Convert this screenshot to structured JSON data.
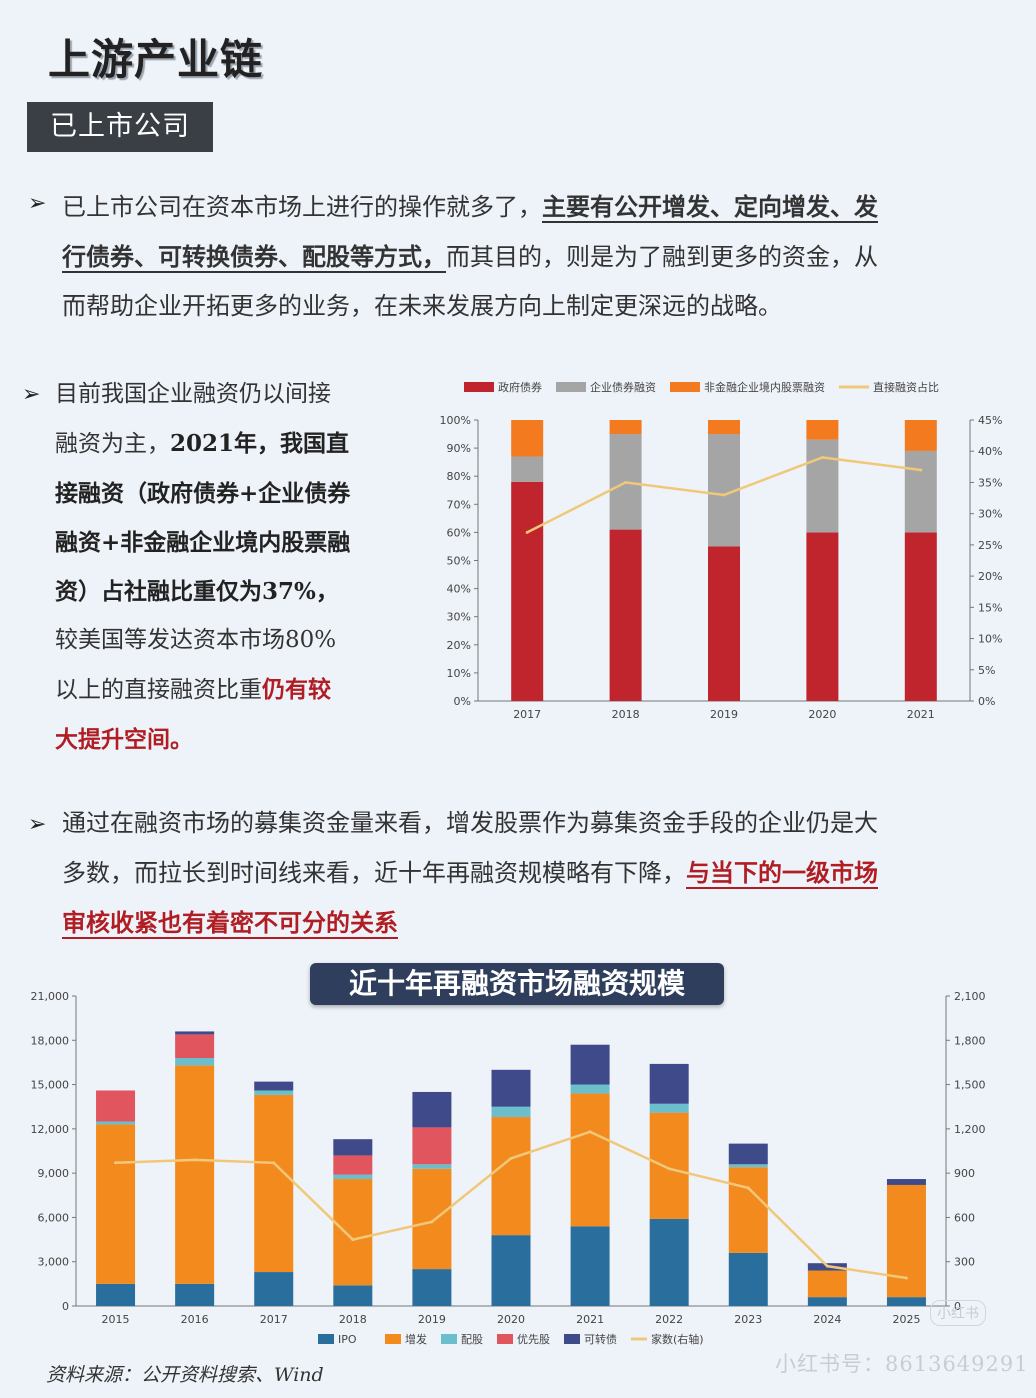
{
  "header": {
    "title": "上游产业链",
    "badge": "已上市公司"
  },
  "section1": {
    "bullet": "➢",
    "text_pre": "已上市公司在资本市场上进行的操作就多了，",
    "text_ul_1": "主要有公开增发、定向增发、发",
    "text_ul_2": "行债券、可转换债券、配股等方式，",
    "text_post_1": "而其目的，则是为了融到更多的资金，从",
    "text_post_2": "而帮助企业开拓更多的业务，在未来发展方向上制定更深远的战略。"
  },
  "section2": {
    "bullet": "➢",
    "lines": [
      "目前我国企业融资仍以间接",
      "融资为主，",
      "2021年，我国直",
      "接融资（政府债券+企业债券",
      "融资+非金融企业境内股票融",
      "资）占社融比重仅为37%，",
      "较美国等发达资本市场80%",
      "以上的直接融资比重",
      "仍有较",
      "大提升空间。"
    ]
  },
  "section3": {
    "bullet": "➢",
    "line1": "通过在融资市场的募集资金量来看，增发股票作为募集资金手段的企业仍是大",
    "line2_pre": "多数，而拉长到时间线来看，近十年再融资规模略有下降，",
    "line2_red": "与当下的一级市场",
    "line3_red": "审核收紧也有着密不可分的关系"
  },
  "chart_data": [
    {
      "type": "bar",
      "stacked": true,
      "categories": [
        "2017",
        "2018",
        "2019",
        "2020",
        "2021"
      ],
      "series": [
        {
          "name": "政府债券",
          "values": [
            78,
            61,
            55,
            60,
            60
          ],
          "color": "#c0242d"
        },
        {
          "name": "企业债券融资",
          "values": [
            9,
            34,
            40,
            33,
            29
          ],
          "color": "#a5a5a5"
        },
        {
          "name": "非金融企业境内股票融资",
          "values": [
            13,
            5,
            5,
            7,
            11
          ],
          "color": "#f47a1f"
        }
      ],
      "line": {
        "name": "直接融资占比",
        "values": [
          27,
          35,
          33,
          39,
          37
        ],
        "color": "#f0c87a",
        "axis": "right"
      },
      "ylim": [
        0,
        100
      ],
      "y_ticks": [
        "0%",
        "10%",
        "20%",
        "30%",
        "40%",
        "50%",
        "60%",
        "70%",
        "80%",
        "90%",
        "100%"
      ],
      "y2lim": [
        0,
        45
      ],
      "y2_ticks": [
        "0%",
        "5%",
        "10%",
        "15%",
        "20%",
        "25%",
        "30%",
        "35%",
        "40%",
        "45%"
      ],
      "legend_position": "top"
    },
    {
      "type": "bar",
      "stacked": true,
      "title": "近十年再融资市场融资规模",
      "categories": [
        "2015",
        "2016",
        "2017",
        "2018",
        "2019",
        "2020",
        "2021",
        "2022",
        "2023",
        "2024",
        "2025"
      ],
      "series": [
        {
          "name": "IPO",
          "values": [
            1500,
            1500,
            2300,
            1400,
            2500,
            4800,
            5400,
            5900,
            3600,
            600,
            600
          ],
          "color": "#2a6e9e"
        },
        {
          "name": "增发",
          "values": [
            10800,
            14800,
            12000,
            7200,
            6800,
            8000,
            9000,
            7200,
            5800,
            1800,
            7600
          ],
          "color": "#f28a1e"
        },
        {
          "name": "配股",
          "values": [
            200,
            500,
            300,
            300,
            300,
            700,
            600,
            600,
            200,
            0,
            0
          ],
          "color": "#6bbfcd"
        },
        {
          "name": "优先股",
          "values": [
            2100,
            1600,
            0,
            1300,
            2500,
            0,
            0,
            0,
            0,
            0,
            0
          ],
          "color": "#e0555e"
        },
        {
          "name": "可转债",
          "values": [
            0,
            200,
            600,
            1100,
            2400,
            2500,
            2700,
            2700,
            1400,
            500,
            400
          ],
          "color": "#3f4a8a"
        }
      ],
      "line": {
        "name": "家数(右轴)",
        "values": [
          970,
          990,
          970,
          450,
          570,
          1000,
          1180,
          930,
          800,
          270,
          190
        ],
        "color": "#f0c87a",
        "axis": "right"
      },
      "ylim": [
        0,
        21000
      ],
      "y_ticks": [
        "0",
        "3,000",
        "6,000",
        "9,000",
        "12,000",
        "15,000",
        "18,000",
        "21,000"
      ],
      "y2lim": [
        0,
        2100
      ],
      "y2_ticks": [
        "0",
        "300",
        "600",
        "900",
        "1,200",
        "1,500",
        "1,800",
        "2,100"
      ],
      "legend_position": "bottom"
    }
  ],
  "footer": {
    "source": "资料来源：公开资料搜索、Wind",
    "watermark_badge": "小红书",
    "watermark_id": "小红书号：8613649291"
  }
}
